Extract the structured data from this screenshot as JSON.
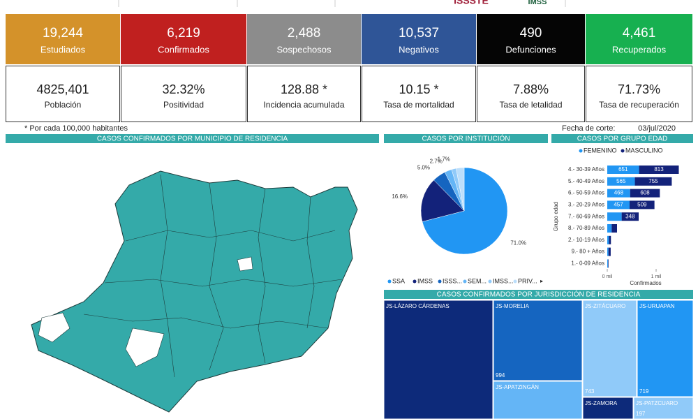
{
  "header": {
    "logos": [
      "ISSSTE",
      "IMSS"
    ]
  },
  "cards": [
    {
      "value": "19,244",
      "label": "Estudiados",
      "color": "#d4922a"
    },
    {
      "value": "6,219",
      "label": "Confirmados",
      "color": "#c0201f"
    },
    {
      "value": "2,488",
      "label": "Sospechosos",
      "color": "#8c8c8c"
    },
    {
      "value": "10,537",
      "label": "Negativos",
      "color": "#2f5597"
    },
    {
      "value": "490",
      "label": "Defunciones",
      "color": "#050505"
    },
    {
      "value": "4,461",
      "label": "Recuperados",
      "color": "#17b050"
    }
  ],
  "metrics": [
    {
      "value": "4825,401",
      "label": "Población"
    },
    {
      "value": "32.32%",
      "label": "Positividad"
    },
    {
      "value": "128.88 *",
      "label": "Incidencia acumulada"
    },
    {
      "value": "10.15   *",
      "label": "Tasa de mortalidad"
    },
    {
      "value": "7.88%",
      "label": "Tasa de letalidad"
    },
    {
      "value": "71.73%",
      "label": "Tasa de recuperación"
    }
  ],
  "note": "* Por cada 100,000 habitantes",
  "cutoff": {
    "label": "Fecha de corte:",
    "date": "03/jul/2020"
  },
  "map": {
    "title": "CASOS CONFIRMADOS POR MUNICIPIO DE RESIDENCIA"
  },
  "chart_data": [
    {
      "type": "pie",
      "title": "CASOS POR INSTITUCIÓN",
      "categories": [
        "SSA",
        "IMSS",
        "ISSS...",
        "SEM...",
        "IMSS...",
        "PRIV..."
      ],
      "values": [
        71.0,
        16.6,
        5.0,
        2.7,
        1.7,
        3.0
      ],
      "value_labels": [
        "71.0%",
        "16.6%",
        "5.0%",
        "2.7%",
        "1.7%",
        null
      ],
      "colors": [
        "#2196f3",
        "#13227a",
        "#1565c0",
        "#64b5f6",
        "#90caf9",
        "#bbdefb"
      ]
    },
    {
      "type": "hbar-stacked",
      "title": "CASOS POR GRUPO EDAD",
      "categories": [
        "4.- 30-39 Años",
        "5.- 40-49 Años",
        "6.- 50-59 Años",
        "3.- 20-29 Años",
        "7.- 60-69 Años",
        "8.- 70-89 Años",
        "2.- 10-19 Años",
        "9.- 80 + Años",
        "1.- 0-09 Años"
      ],
      "series": [
        {
          "name": "FEMENINO",
          "color": "#2196f3",
          "values": [
            651,
            565,
            468,
            457,
            295,
            90,
            35,
            25,
            15
          ]
        },
        {
          "name": "MASCULINO",
          "color": "#13227a",
          "values": [
            813,
            755,
            608,
            509,
            348,
            110,
            40,
            45,
            10
          ]
        }
      ],
      "xlim": [
        0,
        1500
      ],
      "xticks": [
        {
          "value": 0,
          "label": "0 mil"
        },
        {
          "value": 1000,
          "label": "1 mil"
        }
      ],
      "x_label": "Confirmados",
      "y_label": "Grupo edad"
    },
    {
      "type": "treemap",
      "title": "CASOS CONFIRMADOS POR JURISDICCIÓN DE RESIDENCIA",
      "items": [
        {
          "name": "JS-LÁZARO CÁRDENAS"
        },
        {
          "name": "JS-MORELIA",
          "value": "994"
        },
        {
          "name": "JS-APATZINGÁN"
        },
        {
          "name": "JS-ZITÁCUARO",
          "value": "743"
        },
        {
          "name": "JS-ZAMORA"
        },
        {
          "name": "JS-URUAPAN",
          "value": "719"
        },
        {
          "name": "JS-PATZCUARO",
          "value": "197"
        }
      ]
    }
  ]
}
